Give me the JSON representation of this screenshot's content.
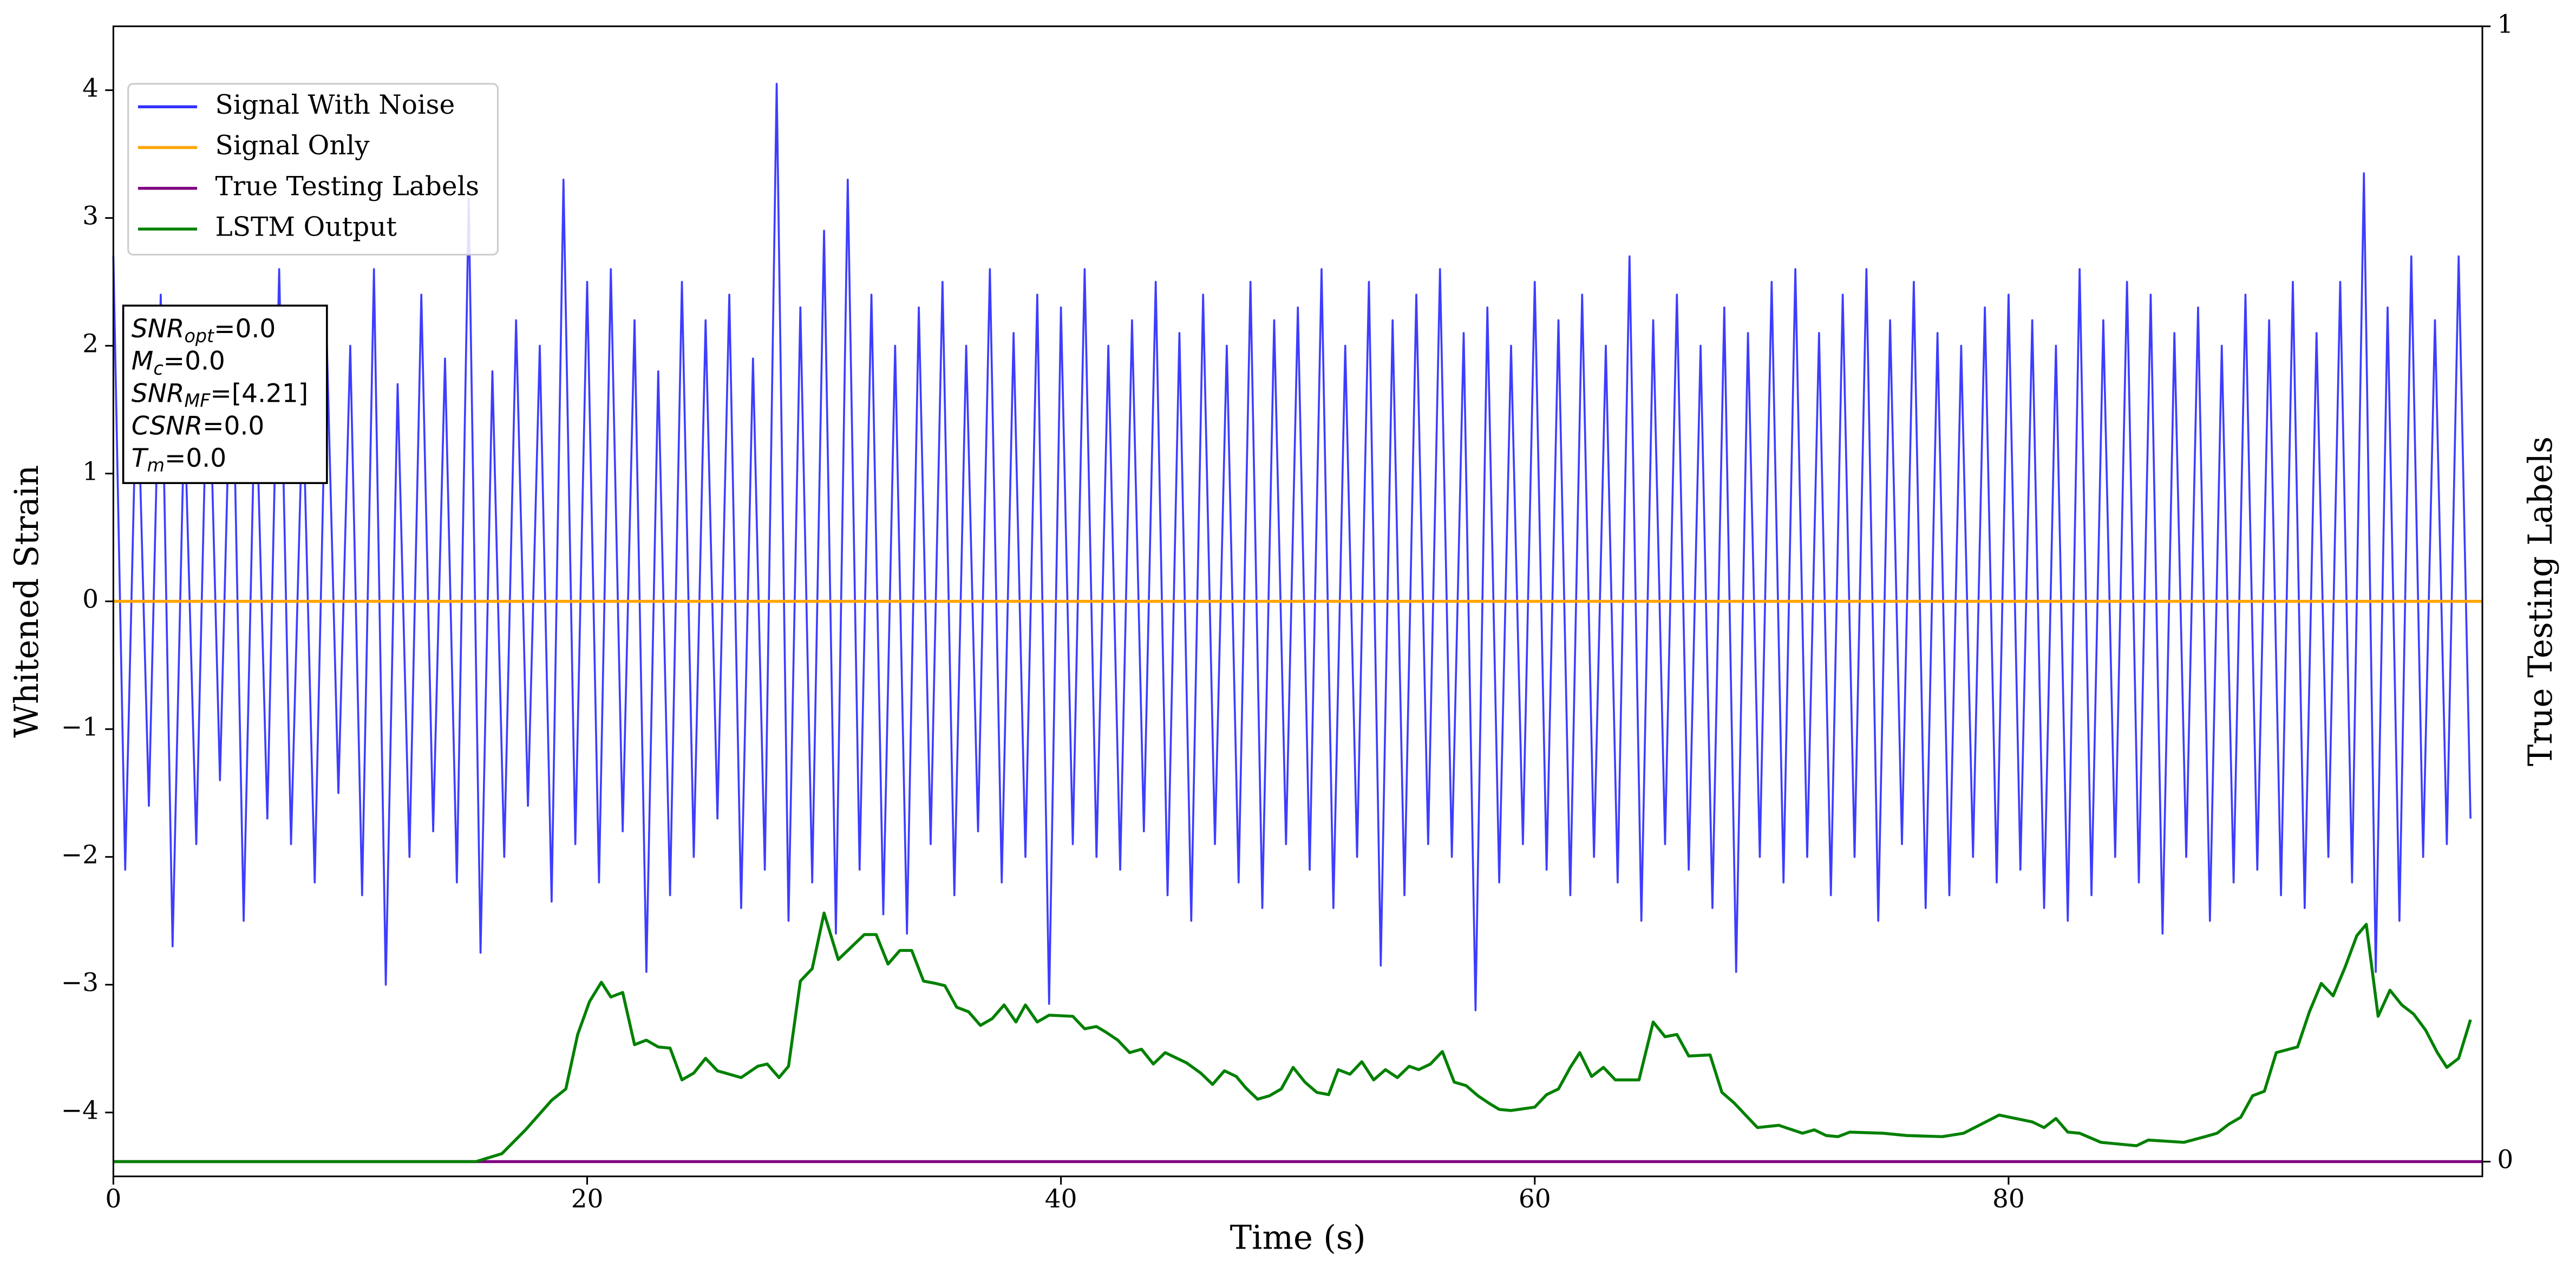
{
  "chart_data": {
    "type": "line",
    "xlabel": "Time (s)",
    "ylabel": "Whitened Strain",
    "y2label": "True Testing Labels",
    "xlim": [
      0,
      100
    ],
    "ylim": [
      -4.5,
      4.5
    ],
    "y2lim": [
      -0.013,
      1.0
    ],
    "xticks": [
      0,
      20,
      40,
      60,
      80
    ],
    "yticks": [
      {
        "value": -4,
        "label": "−4"
      },
      {
        "value": -3,
        "label": "−3"
      },
      {
        "value": -2,
        "label": "−2"
      },
      {
        "value": -1,
        "label": "−1"
      },
      0,
      1,
      2,
      3,
      4
    ],
    "y2ticks": [
      0,
      1
    ],
    "legend": "upper left",
    "annotation": [
      {
        "base": "SNR",
        "sub": "opt",
        "rest": "=0.0"
      },
      {
        "base": "M",
        "sub": "c",
        "rest": "=0.0"
      },
      {
        "base": "SNR",
        "sub": "MF",
        "rest": "=[4.21]"
      },
      {
        "base": "CSNR",
        "rest": "=0.0"
      },
      {
        "base": "T",
        "sub": "m",
        "rest": "=0.0"
      }
    ],
    "series": [
      {
        "name": "Signal With Noise",
        "color": "#3333ff",
        "x": [
          0,
          0.5,
          1,
          1.5,
          2,
          2.5,
          3,
          3.5,
          4,
          4.5,
          5,
          5.5,
          6,
          6.5,
          7,
          7.5,
          8,
          8.5,
          9,
          9.5,
          10,
          10.5,
          11,
          11.5,
          12,
          12.5,
          13,
          13.5,
          14,
          14.5,
          15,
          15.5,
          16,
          16.5,
          17,
          17.5,
          18,
          18.5,
          19,
          19.5,
          20,
          20.5,
          21,
          21.5,
          22,
          22.5,
          23,
          23.5,
          24,
          24.5,
          25,
          25.5,
          26,
          26.5,
          27,
          27.5,
          28,
          28.5,
          29,
          29.5,
          30,
          30.5,
          31,
          31.5,
          32,
          32.5,
          33,
          33.5,
          34,
          34.5,
          35,
          35.5,
          36,
          36.5,
          37,
          37.5,
          38,
          38.5,
          39,
          39.5,
          40,
          40.5,
          41,
          41.5,
          42,
          42.5,
          43,
          43.5,
          44,
          44.5,
          45,
          45.5,
          46,
          46.5,
          47,
          47.5,
          48,
          48.5,
          49,
          49.5,
          50,
          50.5,
          51,
          51.5,
          52,
          52.5,
          53,
          53.5,
          54,
          54.5,
          55,
          55.5,
          56,
          56.5,
          57,
          57.5,
          58,
          58.5,
          59,
          59.5,
          60,
          60.5,
          61,
          61.5,
          62,
          62.5,
          63,
          63.5,
          64,
          64.5,
          65,
          65.5,
          66,
          66.5,
          67,
          67.5,
          68,
          68.5,
          69,
          69.5,
          70,
          70.5,
          71,
          71.5,
          72,
          72.5,
          73,
          73.5,
          74,
          74.5,
          75,
          75.5,
          76,
          76.5,
          77,
          77.5,
          78,
          78.5,
          79,
          79.5,
          80,
          80.5,
          81,
          81.5,
          82,
          82.5,
          83,
          83.5,
          84,
          84.5,
          85,
          85.5,
          86,
          86.5,
          87,
          87.5,
          88,
          88.5,
          89,
          89.5,
          90,
          90.5,
          91,
          91.5,
          92,
          92.5,
          93,
          93.5,
          94,
          94.5,
          95,
          95.5,
          96,
          96.5,
          97,
          97.5,
          98,
          98.5,
          99,
          99.5
        ],
        "values": [
          2.7,
          -2.1,
          1.9,
          -1.6,
          2.4,
          -2.7,
          1.5,
          -1.9,
          2.2,
          -1.4,
          2.3,
          -2.5,
          1.8,
          -1.7,
          2.6,
          -1.9,
          1.6,
          -2.2,
          2.1,
          -1.5,
          2.0,
          -2.3,
          2.6,
          -3.0,
          1.7,
          -2.0,
          2.4,
          -1.8,
          1.9,
          -2.2,
          3.15,
          -2.75,
          1.8,
          -2.0,
          2.2,
          -1.6,
          2.0,
          -2.35,
          3.3,
          -1.9,
          2.5,
          -2.2,
          2.6,
          -1.8,
          2.2,
          -2.9,
          1.8,
          -2.3,
          2.5,
          -2.0,
          2.2,
          -1.7,
          2.4,
          -2.4,
          1.9,
          -2.1,
          4.05,
          -2.5,
          2.3,
          -2.2,
          2.9,
          -2.6,
          3.3,
          -2.1,
          2.4,
          -2.45,
          2.0,
          -2.6,
          2.3,
          -1.9,
          2.5,
          -2.3,
          2.0,
          -1.8,
          2.6,
          -2.2,
          2.1,
          -2.0,
          2.4,
          -3.15,
          2.3,
          -1.9,
          2.6,
          -2.0,
          2.0,
          -2.1,
          2.2,
          -1.8,
          2.5,
          -2.3,
          2.1,
          -2.5,
          2.4,
          -1.9,
          2.0,
          -2.2,
          2.5,
          -2.4,
          2.2,
          -1.9,
          2.3,
          -2.1,
          2.6,
          -2.4,
          2.0,
          -2.0,
          2.5,
          -2.85,
          2.2,
          -2.3,
          2.4,
          -1.9,
          2.6,
          -2.0,
          2.1,
          -3.2,
          2.3,
          -2.2,
          2.0,
          -1.9,
          2.5,
          -2.1,
          2.2,
          -2.3,
          2.4,
          -2.0,
          2.0,
          -2.2,
          2.7,
          -2.5,
          2.2,
          -1.9,
          2.4,
          -2.1,
          2.0,
          -2.4,
          2.3,
          -2.9,
          2.1,
          -2.0,
          2.5,
          -2.2,
          2.6,
          -2.0,
          2.1,
          -2.3,
          2.4,
          -2.0,
          2.6,
          -2.5,
          2.2,
          -1.9,
          2.5,
          -2.4,
          2.1,
          -2.3,
          2.0,
          -2.0,
          2.3,
          -2.2,
          2.4,
          -2.1,
          2.2,
          -2.4,
          2.0,
          -2.5,
          2.6,
          -2.3,
          2.2,
          -2.0,
          2.5,
          -2.2,
          2.4,
          -2.6,
          2.1,
          -2.0,
          2.3,
          -2.5,
          2.0,
          -2.2,
          2.4,
          -2.1,
          2.2,
          -2.3,
          2.5,
          -2.4,
          2.1,
          -2.0,
          2.5,
          -2.2,
          3.35,
          -2.9,
          2.3,
          -2.5,
          2.7,
          -2.0,
          2.2,
          -1.9,
          2.7,
          -1.7
        ]
      },
      {
        "name": "Signal Only",
        "color": "#ffa500",
        "x": [
          0,
          100
        ],
        "values": [
          0,
          0
        ]
      },
      {
        "name": "True Testing Labels",
        "color": "#800080",
        "axis": "y2",
        "x": [
          0,
          100
        ],
        "values": [
          0,
          0
        ]
      },
      {
        "name": "LSTM Output",
        "color": "#008000",
        "axis": "y2",
        "x": [
          0,
          15.3,
          16.4,
          17.4,
          18.5,
          19.1,
          19.6,
          20.1,
          20.6,
          21.0,
          21.5,
          22.0,
          22.5,
          23.0,
          23.5,
          24.0,
          24.5,
          25.0,
          25.5,
          26.5,
          27.2,
          27.6,
          28.1,
          28.5,
          29.0,
          29.5,
          30.0,
          30.6,
          31.1,
          31.7,
          32.2,
          32.7,
          33.2,
          33.7,
          34.2,
          34.7,
          35.1,
          35.6,
          36.1,
          36.6,
          37.1,
          37.6,
          38.1,
          38.5,
          39.0,
          39.5,
          40.5,
          41.0,
          41.5,
          41.9,
          42.4,
          42.9,
          43.4,
          43.9,
          44.4,
          45.3,
          45.9,
          46.4,
          46.9,
          47.4,
          47.8,
          48.3,
          48.8,
          49.3,
          49.8,
          50.3,
          50.8,
          51.3,
          51.7,
          52.2,
          52.7,
          53.2,
          53.7,
          54.2,
          54.7,
          55.1,
          55.6,
          56.1,
          56.6,
          57.1,
          57.6,
          58.1,
          58.5,
          59.0,
          60.0,
          60.5,
          61.0,
          61.5,
          61.9,
          62.4,
          62.9,
          63.4,
          64.4,
          65.0,
          65.5,
          66.0,
          66.5,
          67.4,
          67.9,
          68.4,
          68.9,
          69.4,
          70.3,
          71.3,
          71.8,
          72.3,
          72.8,
          73.3,
          74.7,
          75.7,
          77.2,
          78.1,
          79.6,
          81.0,
          81.5,
          82.0,
          82.5,
          83.0,
          83.9,
          85.4,
          85.9,
          87.4,
          88.3,
          88.8,
          89.3,
          89.8,
          90.3,
          90.8,
          91.3,
          92.2,
          92.7,
          93.2,
          93.7,
          94.2,
          94.7,
          95.1,
          95.6,
          96.1,
          96.6,
          97.1,
          97.6,
          98.1,
          98.5,
          99.0,
          99.5
        ],
        "values": [
          0,
          0,
          0.007,
          0.028,
          0.054,
          0.064,
          0.112,
          0.141,
          0.158,
          0.145,
          0.149,
          0.103,
          0.107,
          0.101,
          0.1,
          0.072,
          0.078,
          0.091,
          0.08,
          0.074,
          0.084,
          0.086,
          0.074,
          0.084,
          0.159,
          0.17,
          0.219,
          0.178,
          0.188,
          0.2,
          0.2,
          0.174,
          0.186,
          0.186,
          0.159,
          0.157,
          0.155,
          0.136,
          0.132,
          0.12,
          0.126,
          0.138,
          0.123,
          0.138,
          0.123,
          0.129,
          0.128,
          0.117,
          0.119,
          0.114,
          0.107,
          0.096,
          0.099,
          0.086,
          0.096,
          0.087,
          0.078,
          0.068,
          0.08,
          0.075,
          0.065,
          0.055,
          0.058,
          0.064,
          0.083,
          0.07,
          0.061,
          0.059,
          0.081,
          0.077,
          0.088,
          0.072,
          0.081,
          0.074,
          0.084,
          0.081,
          0.086,
          0.097,
          0.07,
          0.067,
          0.058,
          0.051,
          0.046,
          0.045,
          0.048,
          0.059,
          0.064,
          0.083,
          0.096,
          0.075,
          0.083,
          0.072,
          0.072,
          0.123,
          0.11,
          0.112,
          0.093,
          0.094,
          0.061,
          0.052,
          0.041,
          0.03,
          0.032,
          0.025,
          0.028,
          0.023,
          0.022,
          0.026,
          0.025,
          0.023,
          0.022,
          0.025,
          0.041,
          0.035,
          0.03,
          0.038,
          0.026,
          0.025,
          0.017,
          0.014,
          0.019,
          0.017,
          0.022,
          0.025,
          0.033,
          0.039,
          0.058,
          0.062,
          0.096,
          0.101,
          0.132,
          0.157,
          0.146,
          0.171,
          0.199,
          0.209,
          0.128,
          0.151,
          0.138,
          0.13,
          0.116,
          0.096,
          0.083,
          0.091,
          0.125
        ]
      }
    ]
  }
}
